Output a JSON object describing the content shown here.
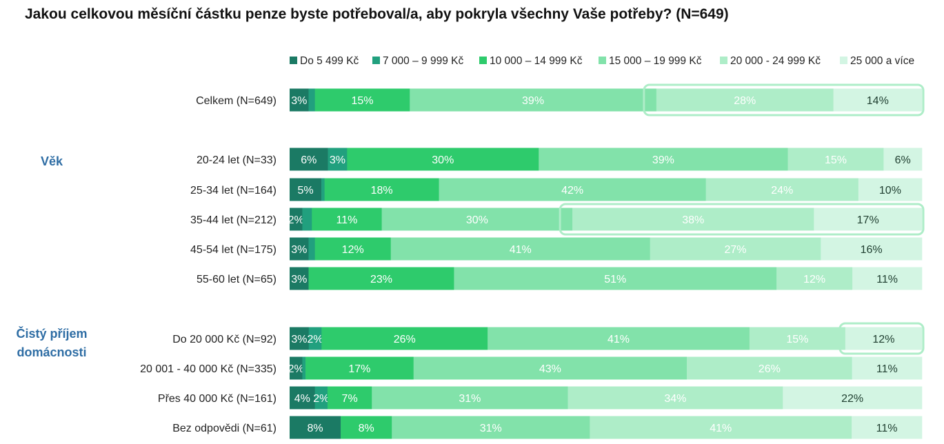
{
  "title": "Jakou celkovou měsíční částku penze byste potřeboval/a, aby pokryla všechny Vaše potřeby? (N=649)",
  "chart_data": {
    "type": "bar",
    "orientation": "horizontal",
    "stacked": true,
    "percent": true,
    "xlim": [
      0,
      100
    ],
    "legend_position": "top",
    "series": [
      {
        "name": "Do 5 499 Kč",
        "color": "#1B7A64"
      },
      {
        "name": "7 000 – 9 999 Kč",
        "color": "#21A07E"
      },
      {
        "name": "10 000 – 14 999 Kč",
        "color": "#2ECB6C"
      },
      {
        "name": "15 000 – 19 999 Kč",
        "color": "#82E2AA"
      },
      {
        "name": "20 000 - 24 999 Kč",
        "color": "#AEEDC8"
      },
      {
        "name": "25 000 a více",
        "color": "#D3F5E3"
      }
    ],
    "groups": [
      {
        "label": "",
        "rows": [
          {
            "label": "Celkem (N=649)",
            "values": [
              3,
              1,
              15,
              39,
              28,
              14
            ],
            "labels": [
              "3%",
              "",
              "15%",
              "39%",
              "28%",
              "14%"
            ]
          }
        ]
      },
      {
        "label": "Věk",
        "rows": [
          {
            "label": "20-24 let (N=33)",
            "values": [
              6,
              3,
              30,
              39,
              15,
              6
            ],
            "labels": [
              "6%",
              "3%",
              "30%",
              "39%",
              "15%",
              "6%"
            ]
          },
          {
            "label": "25-34 let (N=164)",
            "values": [
              5,
              0.5,
              18,
              42,
              24,
              10
            ],
            "labels": [
              "5%",
              "",
              "18%",
              "42%",
              "24%",
              "10%"
            ]
          },
          {
            "label": "35-44 let (N=212)",
            "values": [
              2,
              1.5,
              11,
              30,
              38,
              17
            ],
            "labels": [
              "2%",
              "",
              "11%",
              "30%",
              "38%",
              "17%"
            ]
          },
          {
            "label": "45-54 let (N=175)",
            "values": [
              3,
              1,
              12,
              41,
              27,
              16
            ],
            "labels": [
              "3%",
              "",
              "12%",
              "41%",
              "27%",
              "16%"
            ]
          },
          {
            "label": "55-60 let (N=65)",
            "values": [
              3,
              0,
              23,
              51,
              12,
              11
            ],
            "labels": [
              "3%",
              "",
              "23%",
              "51%",
              "12%",
              "11%"
            ]
          }
        ]
      },
      {
        "label": "Čistý příjem domácnosti",
        "label_lines": [
          "Čistý příjem",
          "domácnosti"
        ],
        "rows": [
          {
            "label": "Do 20 000 Kč (N=92)",
            "values": [
              3,
              2,
              26,
              41,
              15,
              12
            ],
            "labels": [
              "3%",
              "2%",
              "26%",
              "41%",
              "15%",
              "12%"
            ]
          },
          {
            "label": "20 001 - 40 000 Kč (N=335)",
            "values": [
              2,
              0.5,
              17,
              43,
              26,
              11
            ],
            "labels": [
              "2%",
              "",
              "17%",
              "43%",
              "26%",
              "11%"
            ]
          },
          {
            "label": "Přes 40 000 Kč (N=161)",
            "values": [
              4,
              2,
              7,
              31,
              34,
              22
            ],
            "labels": [
              "4%",
              "2%",
              "7%",
              "31%",
              "34%",
              "22%"
            ]
          },
          {
            "label": "Bez odpovědi (N=61)",
            "values": [
              8,
              0,
              8,
              31,
              41,
              11
            ],
            "labels": [
              "8%",
              "",
              "8%",
              "31%",
              "41%",
              "11%"
            ]
          }
        ]
      }
    ],
    "highlights": [
      {
        "row": "Celkem (N=649)",
        "segments": [
          "20 000 - 24 999 Kč",
          "25 000 a více"
        ]
      },
      {
        "row": "35-44 let (N=212)",
        "segments": [
          "20 000 - 24 999 Kč",
          "25 000 a více"
        ]
      },
      {
        "row": "Do 20 000 Kč (N=92)",
        "segments": [
          "25 000 a více"
        ]
      }
    ],
    "highlight_color": "#AEEDC8"
  }
}
